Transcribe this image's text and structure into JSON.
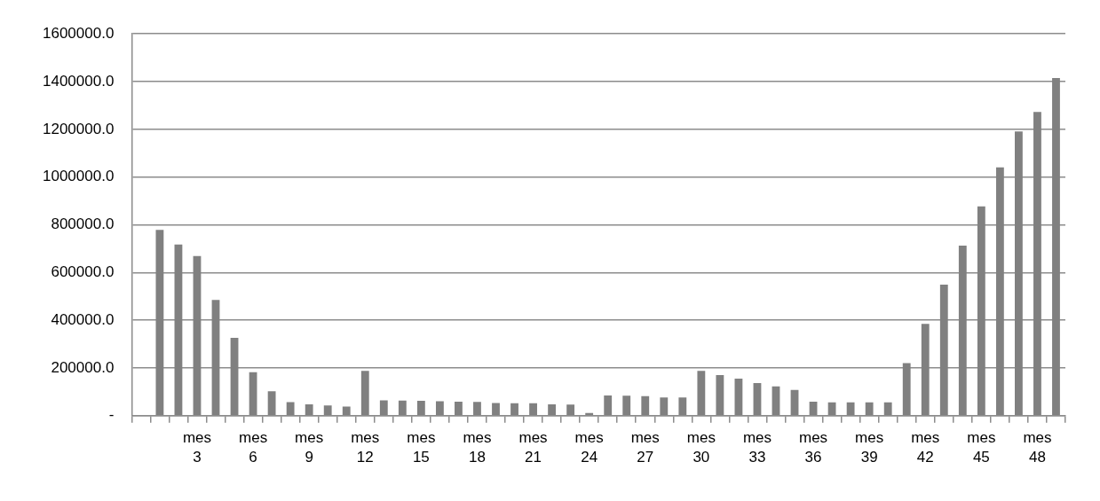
{
  "chart_data": {
    "type": "bar",
    "categories": [
      null,
      null,
      null,
      "mes 3",
      null,
      null,
      "mes 6",
      null,
      null,
      "mes 9",
      null,
      null,
      "mes 12",
      null,
      null,
      "mes 15",
      null,
      null,
      "mes 18",
      null,
      null,
      "mes 21",
      null,
      null,
      "mes 24",
      null,
      null,
      "mes 27",
      null,
      null,
      "mes 30",
      null,
      null,
      "mes 33",
      null,
      null,
      "mes 36",
      null,
      null,
      "mes 39",
      null,
      null,
      "mes 42",
      null,
      null,
      "mes 45",
      null,
      null,
      "mes 48",
      null
    ],
    "values": [
      null,
      779000,
      717000,
      669000,
      485000,
      326000,
      182000,
      102000,
      57000,
      48000,
      43000,
      38000,
      188000,
      64000,
      63000,
      62000,
      61000,
      59000,
      58000,
      53000,
      52000,
      52000,
      48000,
      47000,
      11000,
      85000,
      84000,
      82000,
      76000,
      76000,
      188000,
      170000,
      155000,
      137000,
      123000,
      108000,
      59000,
      56000,
      56000,
      56000,
      56000,
      220000,
      385000,
      549000,
      713000,
      877000,
      1041000,
      1191000,
      1273000,
      1415000
    ],
    "color": "#808080",
    "ylim": [
      0,
      1600000
    ],
    "yticks": [
      {
        "value": 0,
        "label": "-"
      },
      {
        "value": 200000,
        "label": "200000.0"
      },
      {
        "value": 400000,
        "label": "400000.0"
      },
      {
        "value": 600000,
        "label": "600000.0"
      },
      {
        "value": 800000,
        "label": "800000.0"
      },
      {
        "value": 1000000,
        "label": "1000000.0"
      },
      {
        "value": 1200000,
        "label": "1200000.0"
      },
      {
        "value": 1400000,
        "label": "1400000.0"
      },
      {
        "value": 1600000,
        "label": "1600000.0"
      }
    ],
    "grid": "y",
    "legend": false
  }
}
